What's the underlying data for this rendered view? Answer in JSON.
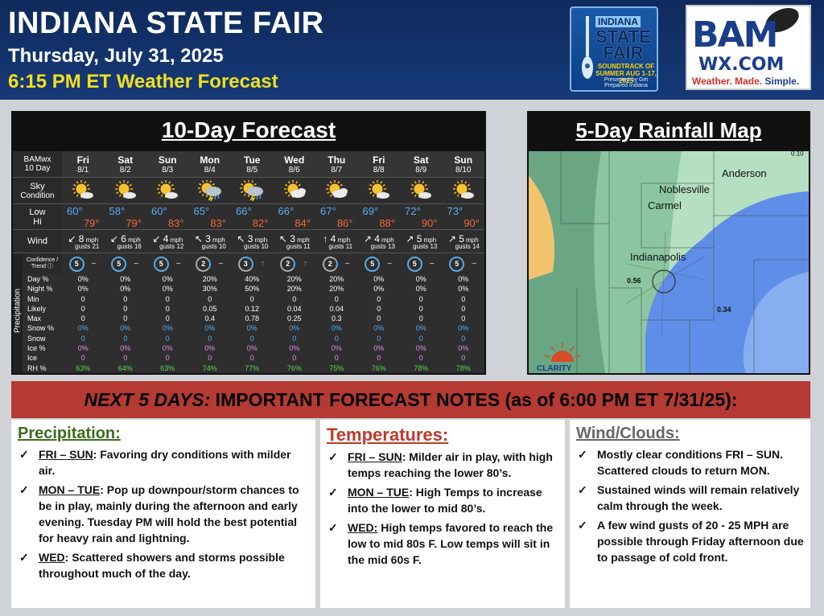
{
  "header": {
    "title": "INDIANA STATE FAIR",
    "date": "Thursday, July 31, 2025",
    "time": "6:15 PM ET Weather Forecast",
    "fair_logo": {
      "line1": "INDIANA",
      "line2a": "STATE",
      "line2b": "FAIR",
      "line3": "SOUNDTRACK OF SUMMER AUG 1-17, 2025",
      "line4": "Presented by Get Prepared Indiana"
    },
    "bam_logo": {
      "bam": "BAM",
      "wx": "WX.COM",
      "tag_a": "Weather. Made. ",
      "tag_b": "Simple."
    }
  },
  "forecast": {
    "title": "10-Day Forecast",
    "corner_a": "BAMwx",
    "corner_b": "10 Day",
    "labels": {
      "sky_a": "Sky",
      "sky_b": "Condition",
      "low": "Low",
      "hi": "Hi",
      "wind": "Wind",
      "conf_a": "Confidence /",
      "conf_b": "Trend ⓘ",
      "precipitation": "Precipitation"
    },
    "precip_labels": [
      "Day %",
      "Night %",
      "Min",
      "Likely",
      "Max",
      "Snow %",
      "Snow",
      "Ice %",
      "Ice",
      "RH %"
    ],
    "days": [
      {
        "day": "Fri",
        "date": "8/1",
        "sky": "sun",
        "low": "60°",
        "hi": "79°",
        "wind_dir": "↙",
        "wind": "8",
        "gusts": "gusts 21",
        "conf": "5",
        "conf_level": "full",
        "trend": "−",
        "trend_dir": "flat",
        "precip": [
          "0%",
          "0%",
          "0",
          "0",
          "0",
          "0%",
          "0",
          "0%",
          "0",
          "63%"
        ]
      },
      {
        "day": "Sat",
        "date": "8/2",
        "sky": "sun",
        "low": "58°",
        "hi": "79°",
        "wind_dir": "↙",
        "wind": "6",
        "gusts": "gusts 16",
        "conf": "5",
        "conf_level": "full",
        "trend": "−",
        "trend_dir": "flat",
        "precip": [
          "0%",
          "0%",
          "0",
          "0",
          "0",
          "0%",
          "0",
          "0%",
          "0",
          "64%"
        ]
      },
      {
        "day": "Sun",
        "date": "8/3",
        "sky": "sun",
        "low": "60°",
        "hi": "83°",
        "wind_dir": "↙",
        "wind": "4",
        "gusts": "gusts 12",
        "conf": "5",
        "conf_level": "full",
        "trend": "−",
        "trend_dir": "flat",
        "precip": [
          "0%",
          "0%",
          "0",
          "0",
          "0",
          "0%",
          "0",
          "0%",
          "0",
          "63%"
        ]
      },
      {
        "day": "Mon",
        "date": "8/4",
        "sky": "storm",
        "low": "65°",
        "hi": "83°",
        "wind_dir": "↖",
        "wind": "3",
        "gusts": "gusts 10",
        "conf": "2",
        "conf_level": "low",
        "trend": "−",
        "trend_dir": "flat",
        "precip": [
          "20%",
          "30%",
          "0",
          "0.05",
          "0.4",
          "0%",
          "0",
          "0%",
          "0",
          "74%"
        ]
      },
      {
        "day": "Tue",
        "date": "8/5",
        "sky": "storm",
        "low": "66°",
        "hi": "82°",
        "wind_dir": "↖",
        "wind": "3",
        "gusts": "gusts 10",
        "conf": "3",
        "conf_level": "mid",
        "trend": "↑",
        "trend_dir": "up",
        "precip": [
          "40%",
          "50%",
          "0",
          "0.12",
          "0.78",
          "0%",
          "0",
          "0%",
          "0",
          "77%"
        ]
      },
      {
        "day": "Wed",
        "date": "8/6",
        "sky": "partly",
        "low": "66°",
        "hi": "84°",
        "wind_dir": "↖",
        "wind": "3",
        "gusts": "gusts 11",
        "conf": "2",
        "conf_level": "low",
        "trend": "↑",
        "trend_dir": "up",
        "precip": [
          "20%",
          "20%",
          "0",
          "0.04",
          "0.25",
          "0%",
          "0",
          "0%",
          "0",
          "76%"
        ]
      },
      {
        "day": "Thu",
        "date": "8/7",
        "sky": "partly",
        "low": "67°",
        "hi": "86°",
        "wind_dir": "↑",
        "wind": "4",
        "gusts": "gusts 11",
        "conf": "2",
        "conf_level": "low",
        "trend": "−",
        "trend_dir": "flat",
        "precip": [
          "20%",
          "20%",
          "0",
          "0.04",
          "0.3",
          "0%",
          "0",
          "0%",
          "0",
          "75%"
        ]
      },
      {
        "day": "Fri",
        "date": "8/8",
        "sky": "sun",
        "low": "69°",
        "hi": "88°",
        "wind_dir": "↗",
        "wind": "4",
        "gusts": "gusts 13",
        "conf": "5",
        "conf_level": "full",
        "trend": "−",
        "trend_dir": "flat",
        "precip": [
          "0%",
          "0%",
          "0",
          "0",
          "0",
          "0%",
          "0",
          "0%",
          "0",
          "76%"
        ]
      },
      {
        "day": "Sat",
        "date": "8/9",
        "sky": "sun",
        "low": "72°",
        "hi": "90°",
        "wind_dir": "↗",
        "wind": "5",
        "gusts": "gusts 13",
        "conf": "5",
        "conf_level": "full",
        "trend": "−",
        "trend_dir": "flat",
        "precip": [
          "0%",
          "0%",
          "0",
          "0",
          "0",
          "0%",
          "0",
          "0%",
          "0",
          "78%"
        ]
      },
      {
        "day": "Sun",
        "date": "8/10",
        "sky": "sun",
        "low": "73°",
        "hi": "90°",
        "wind_dir": "↗",
        "wind": "5",
        "gusts": "gusts 14",
        "conf": "5",
        "conf_level": "full",
        "trend": "−",
        "trend_dir": "flat",
        "precip": [
          "0%",
          "0%",
          "0",
          "0",
          "0",
          "0%",
          "0",
          "0%",
          "0",
          "78%"
        ]
      }
    ],
    "mph": "mph"
  },
  "map": {
    "title": "5-Day Rainfall Map",
    "cities": [
      "Anderson",
      "Noblesville",
      "Carmel",
      "Indianapolis"
    ],
    "values": [
      "0.56",
      "0.34"
    ],
    "corner_value": "0.10",
    "logo": "CLARITY",
    "colors": {
      "orange": "#f2c46e",
      "green_dark": "#6aa584",
      "green_mid": "#8cc6a0",
      "green_light": "#b5dfc1",
      "blue": "#5f8ee8",
      "blue_light": "#87aef0"
    }
  },
  "notes": {
    "banner_a": "NEXT 5 DAYS:",
    "banner_b": " IMPORTANT FORECAST NOTES (as of 6:00 PM ET 7/31/25):",
    "check": "✓",
    "precipitation": {
      "heading": "Precipitation:",
      "items": [
        {
          "lead": "FRI – SUN",
          "text": ": Favoring dry conditions with milder air."
        },
        {
          "lead": "MON – TUE",
          "text": ": Pop up downpour/storm chances to be in play, mainly during the afternoon and early evening. Tuesday PM will hold the best potential for heavy rain and lightning."
        },
        {
          "lead": "WED",
          "text": ": Scattered showers and storms possible throughout much of the day."
        }
      ]
    },
    "temperatures": {
      "heading": "Temperatures:",
      "items": [
        {
          "lead": "FRI – SUN",
          "text": ": Milder air in play, with high temps reaching the lower 80’s."
        },
        {
          "lead": "MON – TUE",
          "text": ": High Temps to increase into the lower to mid 80’s."
        },
        {
          "lead": "WED:",
          "text": " High temps favored to reach the low to mid 80s F. Low temps will sit in the mid 60s F."
        }
      ]
    },
    "wind": {
      "heading": "Wind/Clouds:",
      "items": [
        {
          "text": "Mostly clear conditions FRI – SUN. Scattered clouds to return MON."
        },
        {
          "text": "Sustained winds will remain relatively calm through the week."
        },
        {
          "text": "A few wind gusts of 20 - 25 MPH are possible through Friday afternoon due to passage of cold front."
        }
      ]
    }
  }
}
